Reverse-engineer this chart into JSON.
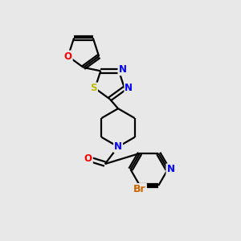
{
  "background_color": "#E8E8E8",
  "bond_color": "#000000",
  "atom_colors": {
    "O": "#FF0000",
    "N": "#0000FF",
    "S": "#BBBB00",
    "Br": "#CC6600",
    "C": "#000000"
  },
  "figsize": [
    3.0,
    3.0
  ],
  "dpi": 100,
  "lw": 1.6,
  "fs": 8.5
}
